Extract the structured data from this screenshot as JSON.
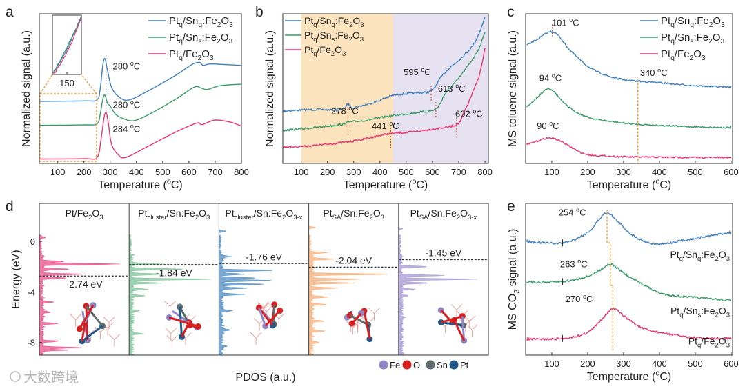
{
  "figure": {
    "watermark": "大数跨境"
  },
  "chart_data": [
    {
      "panel": "a",
      "type": "line",
      "label": "a",
      "xlabel": "Temperature (^{o}C)",
      "ylabel": "Normalized signal (a.u.)",
      "xlim": [
        30,
        800
      ],
      "ylim": [
        0,
        10
      ],
      "xticks": [
        100,
        200,
        300,
        400,
        500,
        600,
        700,
        800
      ],
      "legend_position": "top-right",
      "series": [
        {
          "name": "Pt_{q}/Sn_{q}:Fe_{2}O_{3}",
          "color": "#3f7fbf",
          "x": [
            30,
            200,
            250,
            262,
            272,
            280,
            290,
            305,
            330,
            370,
            450,
            550,
            610,
            640,
            655,
            680,
            750,
            800
          ],
          "y": [
            4.15,
            4.18,
            4.25,
            5.0,
            6.6,
            7.0,
            6.2,
            5.1,
            4.5,
            4.24,
            4.9,
            5.9,
            6.6,
            6.75,
            6.55,
            6.65,
            6.6,
            6.55
          ]
        },
        {
          "name": "Pt_{q}/Sn_{s}:Fe_{2}O_{3}",
          "color": "#3a9a6a",
          "x": [
            30,
            200,
            250,
            262,
            272,
            280,
            290,
            300,
            320,
            350,
            390,
            450,
            550,
            620,
            645,
            670,
            720,
            800
          ],
          "y": [
            2.55,
            2.58,
            2.65,
            3.3,
            4.3,
            4.56,
            4.0,
            3.85,
            3.3,
            3.0,
            2.86,
            3.3,
            4.3,
            5.1,
            5.05,
            4.95,
            5.2,
            5.3
          ]
        },
        {
          "name": "Pt_{q}/Fe_{2}O_{3}",
          "color": "#e8336f",
          "x": [
            30,
            200,
            250,
            265,
            276,
            284,
            292,
            305,
            330,
            360,
            450,
            550,
            630,
            650,
            700,
            760,
            800
          ],
          "y": [
            0.3,
            0.32,
            0.4,
            1.6,
            3.0,
            3.4,
            2.8,
            1.3,
            0.6,
            0.41,
            1.2,
            2.1,
            2.7,
            2.6,
            2.9,
            2.75,
            2.5
          ]
        }
      ],
      "annotations": [
        {
          "text": "280 ^{o}C",
          "x": 310,
          "y": 6.3
        },
        {
          "text": "280 ^{o}C",
          "x": 310,
          "y": 3.7
        },
        {
          "text": "284 ^{o}C",
          "x": 310,
          "y": 2.1
        }
      ],
      "peak_marker_x": 284,
      "inset": {
        "xtick": "150"
      }
    },
    {
      "panel": "b",
      "type": "line",
      "label": "b",
      "xlabel": "Temperature (^{o}C)",
      "ylabel": "Normalized signal (a.u.)",
      "xlim": [
        30,
        813
      ],
      "ylim": [
        0,
        10
      ],
      "xticks": [
        100,
        200,
        300,
        400,
        500,
        600,
        700,
        800
      ],
      "legend_position": "top-left",
      "regions": [
        {
          "from": 100,
          "to": 450,
          "color": "#fbe4bd"
        },
        {
          "from": 450,
          "to": 813,
          "color": "#e6e2f1"
        }
      ],
      "series": [
        {
          "name": "Pt_{q}/Sn_{q}:Fe_{2}O_{3}",
          "color": "#3f7fbf",
          "x": [
            30,
            150,
            250,
            278,
            300,
            380,
            450,
            530,
            595,
            630,
            660,
            700,
            750,
            780,
            800
          ],
          "y": [
            3.5,
            3.6,
            3.6,
            3.95,
            3.75,
            4.1,
            4.55,
            4.7,
            4.85,
            5.7,
            6.3,
            6.9,
            7.8,
            8.8,
            9.8
          ]
        },
        {
          "name": "Pt_{q}/Sn_{s}:Fe_{2}O_{3}",
          "color": "#3a9a6a",
          "x": [
            30,
            150,
            250,
            278,
            350,
            450,
            540,
            613,
            650,
            700,
            750,
            780,
            800
          ],
          "y": [
            2.2,
            2.4,
            2.6,
            2.75,
            2.9,
            3.2,
            3.4,
            3.65,
            4.7,
            5.7,
            6.9,
            7.8,
            8.8
          ]
        },
        {
          "name": "Pt_{q}/Fe_{2}O_{3}",
          "color": "#e8336f",
          "x": [
            30,
            150,
            300,
            380,
            441,
            520,
            600,
            692,
            720,
            750,
            780,
            800
          ],
          "y": [
            1.1,
            1.2,
            1.5,
            1.8,
            2.0,
            2.1,
            2.3,
            2.6,
            3.4,
            4.6,
            6.0,
            7.7
          ]
        }
      ],
      "annotations": [
        {
          "text": "278 ^{o}C",
          "x": 214,
          "y": 3.3
        },
        {
          "text": "441 ^{o}C",
          "x": 369,
          "y": 2.3
        },
        {
          "text": "595 ^{o}C",
          "x": 490,
          "y": 5.9
        },
        {
          "text": "613 ^{o}C",
          "x": 621,
          "y": 4.8
        },
        {
          "text": "692 ^{o}C",
          "x": 687,
          "y": 3.1
        }
      ],
      "markers": [
        [
          278,
          4.0,
          1.9
        ],
        [
          441,
          2.4,
          1.0
        ],
        [
          595,
          5.2,
          4.2
        ],
        [
          613,
          4.1,
          3.1
        ],
        [
          692,
          3.1,
          1.7
        ]
      ]
    },
    {
      "panel": "c",
      "type": "line",
      "label": "c",
      "xlabel": "Temperature (^{o}C)",
      "ylabel": "MS toluene signal (a.u.)",
      "xlim": [
        27,
        604
      ],
      "ylim": [
        0,
        10
      ],
      "xticks": [
        100,
        200,
        300,
        400,
        500,
        600
      ],
      "legend_position": "top-right",
      "series": [
        {
          "name": "Pt_{q}/Sn_{q}:Fe_{2}O_{3}",
          "color": "#3f7fbf",
          "x": [
            30,
            60,
            85,
            101,
            120,
            150,
            200,
            250,
            300,
            340,
            400,
            500,
            600
          ],
          "y": [
            7.9,
            8.3,
            8.7,
            8.8,
            8.5,
            7.6,
            6.5,
            5.9,
            5.6,
            5.5,
            5.4,
            5.2,
            5.1
          ]
        },
        {
          "name": "Pt_{q}/Sn_{s}:Fe_{2}O_{3}",
          "color": "#3a9a6a",
          "x": [
            30,
            60,
            80,
            94,
            110,
            140,
            200,
            300,
            400,
            500,
            600
          ],
          "y": [
            3.8,
            4.4,
            4.9,
            5.0,
            4.7,
            3.9,
            3.1,
            2.7,
            2.55,
            2.45,
            2.4
          ]
        },
        {
          "name": "Pt_{q}/Fe_{2}O_{3}",
          "color": "#e8336f",
          "x": [
            30,
            60,
            90,
            120,
            160,
            200,
            300,
            400,
            500,
            600
          ],
          "y": [
            1.25,
            1.5,
            1.7,
            1.55,
            1.0,
            0.6,
            0.45,
            0.42,
            0.4,
            0.4
          ]
        }
      ],
      "annotations": [
        {
          "text": "101 ^{o}C",
          "x": 100,
          "y": 9.2
        },
        {
          "text": "94 ^{o}C",
          "x": 65,
          "y": 5.5
        },
        {
          "text": "340 ^{o}C",
          "x": 346,
          "y": 5.85
        },
        {
          "text": "90 ^{o}C",
          "x": 58,
          "y": 2.3
        }
      ],
      "markers": [
        [
          101,
          9.3,
          8.5
        ]
      ],
      "guide_x": 340
    },
    {
      "panel": "d",
      "type": "area",
      "label": "d",
      "xlabel": "PDOS (a.u.)",
      "ylabel": "Energy (eV)",
      "ylim": [
        -9,
        3
      ],
      "yticks": [
        0,
        -4,
        -8
      ],
      "subpanels": [
        {
          "title": "Pt/Fe_{2}O_{3}",
          "color": "#e8508a",
          "d_band_center": -2.74,
          "label": "-2.74 eV",
          "label_side": "below",
          "peaks": [
            [
              0.3,
              0.05
            ],
            [
              -1.6,
              0.25
            ],
            [
              -1.8,
              0.9
            ],
            [
              -2.2,
              0.3
            ],
            [
              -2.6,
              0.45
            ],
            [
              -2.9,
              0.3
            ],
            [
              -4.8,
              0.12
            ],
            [
              -5.6,
              0.1
            ],
            [
              -6.5,
              0.18
            ],
            [
              -7.9,
              0.2
            ],
            [
              -8.4,
              0.45
            ],
            [
              -8.6,
              0.3
            ]
          ]
        },
        {
          "title": "Pt_{cluster}/Sn:Fe_{2}O_{3}",
          "color": "#7fc49a",
          "d_band_center": -1.84,
          "label": "-1.84 eV",
          "label_side": "below",
          "peaks": [
            [
              -1.8,
              0.35
            ],
            [
              -2.2,
              0.6
            ],
            [
              -2.6,
              0.35
            ],
            [
              -3.0,
              0.95
            ],
            [
              -3.3,
              0.35
            ],
            [
              -3.8,
              0.2
            ],
            [
              -4.3,
              0.15
            ],
            [
              -5.5,
              0.1
            ],
            [
              -7.3,
              0.12
            ]
          ]
        },
        {
          "title": "Pt_{cluster}/Sn:Fe_{2}O_{3-x}",
          "color": "#4f8fc4",
          "d_band_center": -1.76,
          "label": "-1.76 eV",
          "label_side": "above",
          "peaks": [
            [
              0.8,
              0.08
            ],
            [
              -1.2,
              0.1
            ],
            [
              -2.3,
              0.6
            ],
            [
              -2.6,
              0.25
            ],
            [
              -2.9,
              0.4
            ],
            [
              -3.1,
              0.6
            ],
            [
              -3.4,
              0.5
            ],
            [
              -3.7,
              0.3
            ],
            [
              -4.2,
              0.25
            ],
            [
              -5.5,
              0.12
            ],
            [
              -7.0,
              0.1
            ],
            [
              -8.3,
              0.05
            ]
          ]
        },
        {
          "title": "Pt_{SA}/Sn:Fe_{2}O_{3}",
          "color": "#f7b07a",
          "d_band_center": -2.04,
          "label": "-2.04 eV",
          "label_side": "above",
          "peaks": [
            [
              1.1,
              0.08
            ],
            [
              -0.9,
              0.2
            ],
            [
              -1.4,
              0.25
            ],
            [
              -2.6,
              0.9
            ],
            [
              -3.0,
              0.55
            ],
            [
              -3.3,
              0.5
            ],
            [
              -3.7,
              0.3
            ],
            [
              -4.4,
              0.2
            ],
            [
              -5.0,
              0.15
            ],
            [
              -6.3,
              0.15
            ],
            [
              -7.1,
              0.15
            ],
            [
              -8.0,
              0.1
            ]
          ]
        },
        {
          "title": "Pt_{SA}/Sn:Fe_{2}O_{3-x}",
          "color": "#a69ad6",
          "d_band_center": -1.45,
          "label": "-1.45 eV",
          "label_side": "above",
          "peaks": [
            [
              1.0,
              0.05
            ],
            [
              -2.0,
              0.3
            ],
            [
              -2.7,
              0.5
            ],
            [
              -3.0,
              0.9
            ],
            [
              -3.3,
              0.35
            ],
            [
              -3.8,
              0.15
            ],
            [
              -4.3,
              0.1
            ],
            [
              -6.0,
              0.05
            ]
          ]
        }
      ],
      "atom_legend": [
        {
          "label": "Fe",
          "color": "#8f86c8"
        },
        {
          "label": "O",
          "color": "#d62020"
        },
        {
          "label": "Sn",
          "color": "#5d6d6d"
        },
        {
          "label": "Pt",
          "color": "#1f5a8a"
        }
      ]
    },
    {
      "panel": "e",
      "type": "line",
      "label": "e",
      "xlabel": "Temperature (^{o}C)",
      "ylabel": "MS CO_{2} signal (a.u.)",
      "xlim": [
        27,
        604
      ],
      "ylim": [
        0,
        10
      ],
      "xticks": [
        100,
        200,
        300,
        400,
        500,
        600
      ],
      "legend_position": "inline-right",
      "series": [
        {
          "name": "Pt_{q}/Sn_{q}:Fe_{2}O_{3}",
          "color": "#3f7fbf",
          "label_y": 6.4,
          "x": [
            30,
            130,
            200,
            230,
            254,
            280,
            320,
            360,
            400,
            450,
            500,
            550,
            600
          ],
          "y": [
            7.5,
            7.4,
            8.1,
            8.9,
            9.4,
            8.9,
            8.0,
            7.5,
            7.3,
            7.5,
            7.7,
            7.9,
            8.1
          ]
        },
        {
          "name": "Pt_{q}/Sn_{s}:Fe_{2}O_{3}",
          "color": "#3a9a6a",
          "label_y": 2.7,
          "x": [
            30,
            130,
            200,
            240,
            263,
            290,
            320,
            360,
            400,
            450,
            500,
            600
          ],
          "y": [
            4.8,
            4.85,
            5.2,
            5.7,
            6.0,
            5.6,
            5.1,
            4.6,
            4.1,
            3.9,
            3.8,
            3.6
          ]
        },
        {
          "name": "Pt_{q}/Fe_{2}O_{3}",
          "color": "#e8336f",
          "label_y": 0.7,
          "x": [
            30,
            130,
            200,
            240,
            270,
            300,
            350,
            400,
            450,
            500,
            550,
            600
          ],
          "y": [
            1.05,
            1.1,
            1.5,
            2.4,
            3.05,
            2.6,
            1.8,
            1.5,
            1.3,
            1.15,
            1.1,
            1.1
          ]
        }
      ],
      "annotations": [
        {
          "text": "254 ^{o}C",
          "x": 119,
          "y": 9.2
        },
        {
          "text": "263 ^{o}C",
          "x": 123,
          "y": 5.8
        },
        {
          "text": "270 ^{o}C",
          "x": 138,
          "y": 3.5
        }
      ],
      "guide_path": [
        [
          254,
          9.6
        ],
        [
          254,
          7.4
        ],
        [
          263,
          7.4
        ],
        [
          263,
          4.6
        ],
        [
          270,
          4.6
        ],
        [
          270,
          0.2
        ]
      ],
      "tick_marks_x": 130
    }
  ]
}
